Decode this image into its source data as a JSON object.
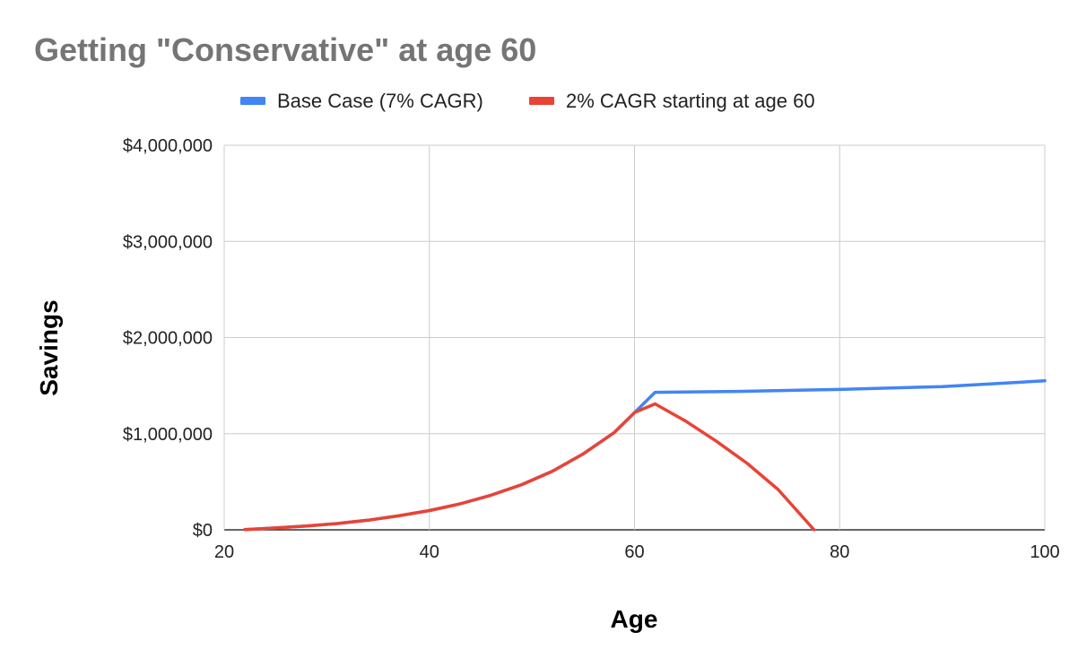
{
  "chart_data": {
    "type": "line",
    "title": "Getting \"Conservative\" at age 60",
    "xlabel": "Age",
    "ylabel": "Savings",
    "xlim": [
      20,
      100
    ],
    "ylim": [
      0,
      4000000
    ],
    "x_ticks": [
      20,
      40,
      60,
      80,
      100
    ],
    "y_ticks": [
      0,
      1000000,
      2000000,
      3000000,
      4000000
    ],
    "y_tick_labels": [
      "$0",
      "$1,000,000",
      "$2,000,000",
      "$3,000,000",
      "$4,000,000"
    ],
    "grid": true,
    "legend_position": "top",
    "series": [
      {
        "name": "Base Case (7% CAGR)",
        "color": "#4285f4",
        "points": [
          [
            22,
            3000
          ],
          [
            25,
            20000
          ],
          [
            28,
            40000
          ],
          [
            31,
            65000
          ],
          [
            34,
            100000
          ],
          [
            37,
            145000
          ],
          [
            40,
            200000
          ],
          [
            43,
            270000
          ],
          [
            46,
            360000
          ],
          [
            49,
            470000
          ],
          [
            52,
            610000
          ],
          [
            55,
            790000
          ],
          [
            58,
            1010000
          ],
          [
            60,
            1220000
          ],
          [
            62,
            1430000
          ],
          [
            70,
            1440000
          ],
          [
            80,
            1460000
          ],
          [
            90,
            1490000
          ],
          [
            100,
            1550000
          ]
        ]
      },
      {
        "name": "2% CAGR starting at age 60",
        "color": "#ea4335",
        "points": [
          [
            22,
            3000
          ],
          [
            25,
            20000
          ],
          [
            28,
            40000
          ],
          [
            31,
            65000
          ],
          [
            34,
            100000
          ],
          [
            37,
            145000
          ],
          [
            40,
            200000
          ],
          [
            43,
            270000
          ],
          [
            46,
            360000
          ],
          [
            49,
            470000
          ],
          [
            52,
            610000
          ],
          [
            55,
            790000
          ],
          [
            58,
            1010000
          ],
          [
            60,
            1220000
          ],
          [
            62,
            1310000
          ],
          [
            65,
            1130000
          ],
          [
            68,
            920000
          ],
          [
            71,
            690000
          ],
          [
            74,
            420000
          ],
          [
            77.5,
            0
          ]
        ]
      }
    ]
  }
}
